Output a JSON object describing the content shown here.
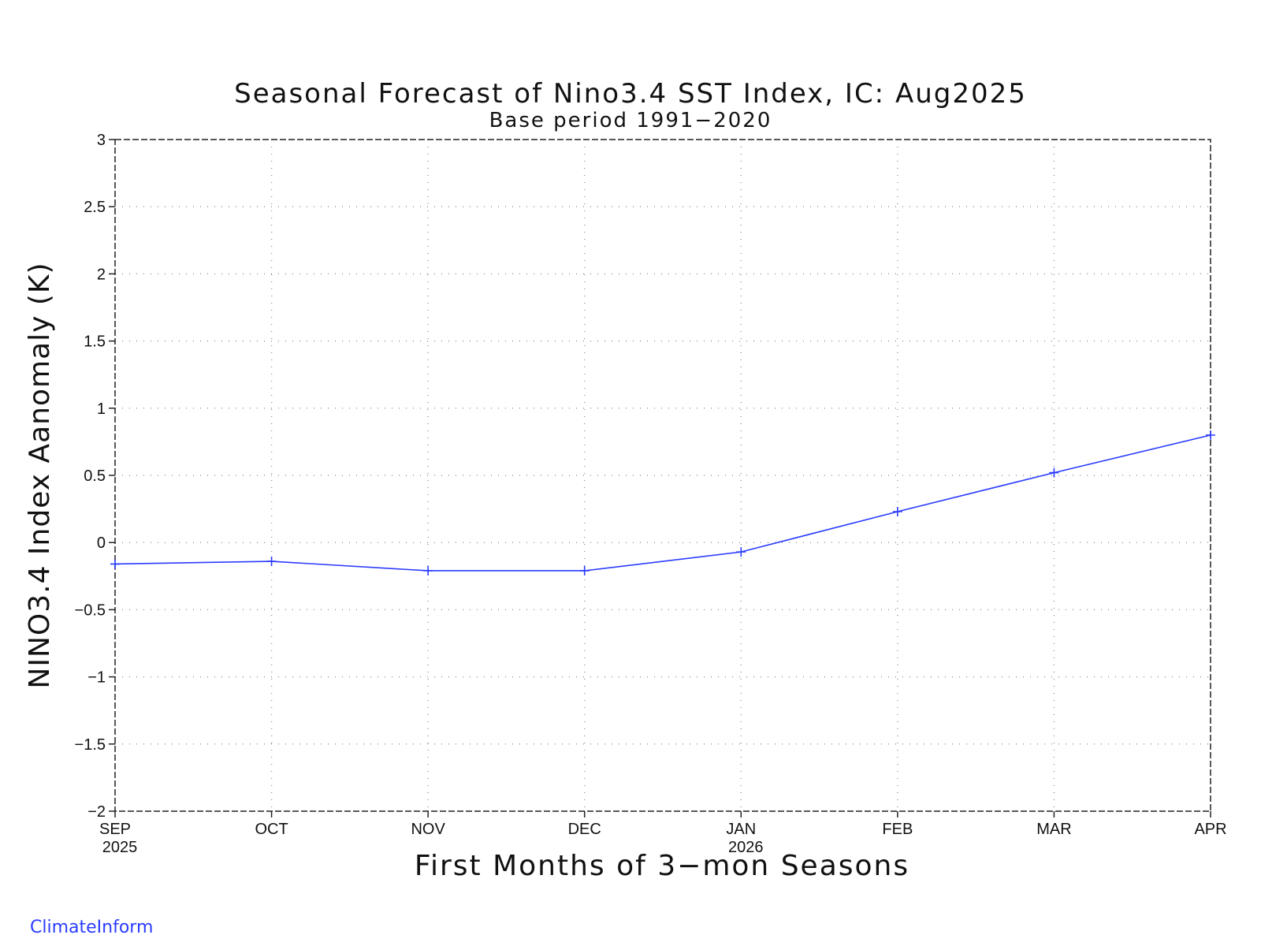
{
  "chart_data": {
    "type": "line",
    "title": "Seasonal Forecast of Nino3.4 SST Index, IC: Aug2025",
    "subtitle": "Base period 1991−2020",
    "xlabel": "First Months of 3−mon Seasons",
    "ylabel": "NINO3.4 Index Aanomaly (K)",
    "categories": [
      "SEP",
      "OCT",
      "NOV",
      "DEC",
      "JAN",
      "FEB",
      "MAR",
      "APR"
    ],
    "year_labels": [
      "2025",
      "",
      "",
      "",
      "2026",
      "",
      "",
      ""
    ],
    "values": [
      -0.16,
      -0.14,
      -0.21,
      -0.21,
      -0.07,
      0.23,
      0.52,
      0.8
    ],
    "ylim": [
      -2,
      3
    ],
    "yticks": [
      -2,
      -1.5,
      -1,
      -0.5,
      0,
      0.5,
      1,
      1.5,
      2,
      2.5,
      3
    ],
    "ytick_labels": [
      "−2",
      "−1.5",
      "−1",
      "−0.5",
      "0",
      "0.5",
      "1",
      "1.5",
      "2",
      "2.5",
      "3"
    ],
    "grid": true,
    "line_color": "#2a3cff",
    "marker": "plus"
  },
  "credit": "ClimateInform"
}
